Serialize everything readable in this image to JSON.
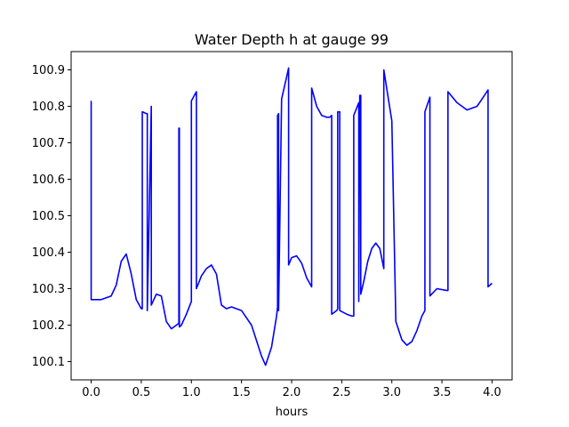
{
  "chart_data": {
    "type": "line",
    "title": "Water Depth h at gauge 99",
    "xlabel": "hours",
    "ylabel": "",
    "xlim": [
      -0.2,
      4.2
    ],
    "ylim": [
      100.05,
      100.95
    ],
    "xticks": [
      0.0,
      0.5,
      1.0,
      1.5,
      2.0,
      2.5,
      3.0,
      3.5,
      4.0
    ],
    "xtick_labels": [
      "0.0",
      "0.5",
      "1.0",
      "1.5",
      "2.0",
      "2.5",
      "3.0",
      "3.5",
      "4.0"
    ],
    "yticks": [
      100.1,
      100.2,
      100.3,
      100.4,
      100.5,
      100.6,
      100.7,
      100.8,
      100.9
    ],
    "ytick_labels": [
      "100.1",
      "100.2",
      "100.3",
      "100.4",
      "100.5",
      "100.6",
      "100.7",
      "100.8",
      "100.9"
    ],
    "grid": false,
    "series": [
      {
        "color": "#0000ff",
        "x": [
          0.0,
          0.0,
          0.1,
          0.2,
          0.25,
          0.3,
          0.35,
          0.4,
          0.45,
          0.5,
          0.51,
          0.51,
          0.55,
          0.56,
          0.56,
          0.6,
          0.6,
          0.65,
          0.7,
          0.75,
          0.8,
          0.85,
          0.875,
          0.875,
          0.88,
          0.88,
          0.9,
          0.95,
          1.0,
          1.0,
          1.05,
          1.05,
          1.1,
          1.15,
          1.2,
          1.25,
          1.3,
          1.35,
          1.4,
          1.5,
          1.6,
          1.7,
          1.74,
          1.8,
          1.85,
          1.86,
          1.86,
          1.87,
          1.87,
          1.9,
          1.95,
          1.97,
          1.97,
          2.0,
          2.05,
          2.1,
          2.15,
          2.2,
          2.2,
          2.25,
          2.3,
          2.35,
          2.38,
          2.4,
          2.4,
          2.45,
          2.46,
          2.46,
          2.48,
          2.48,
          2.55,
          2.6,
          2.62,
          2.62,
          2.67,
          2.67,
          2.68,
          2.69,
          2.69,
          2.72,
          2.76,
          2.8,
          2.84,
          2.88,
          2.92,
          2.92,
          2.96,
          3.0,
          3.04,
          3.04,
          3.1,
          3.15,
          3.2,
          3.25,
          3.3,
          3.33,
          3.33,
          3.38,
          3.38,
          3.45,
          3.55,
          3.56,
          3.56,
          3.65,
          3.75,
          3.85,
          3.9,
          3.96,
          3.96,
          4.0
        ],
        "y": [
          100.815,
          100.27,
          100.27,
          100.28,
          100.31,
          100.375,
          100.395,
          100.34,
          100.27,
          100.245,
          100.245,
          100.785,
          100.78,
          100.78,
          100.24,
          100.8,
          100.255,
          100.285,
          100.28,
          100.21,
          100.19,
          100.2,
          100.205,
          100.74,
          100.74,
          100.195,
          100.2,
          100.23,
          100.265,
          100.815,
          100.84,
          100.3,
          100.335,
          100.355,
          100.365,
          100.34,
          100.255,
          100.245,
          100.25,
          100.24,
          100.2,
          100.115,
          100.09,
          100.14,
          100.225,
          100.25,
          100.775,
          100.78,
          100.24,
          100.82,
          100.88,
          100.905,
          100.365,
          100.385,
          100.39,
          100.37,
          100.33,
          100.305,
          100.85,
          100.8,
          100.775,
          100.77,
          100.77,
          100.775,
          100.23,
          100.24,
          100.245,
          100.785,
          100.785,
          100.24,
          100.23,
          100.225,
          100.225,
          100.775,
          100.81,
          100.265,
          100.83,
          100.83,
          100.285,
          100.32,
          100.375,
          100.41,
          100.425,
          100.41,
          100.355,
          100.9,
          100.83,
          100.76,
          100.21,
          100.21,
          100.16,
          100.145,
          100.155,
          100.185,
          100.225,
          100.24,
          100.785,
          100.825,
          100.28,
          100.3,
          100.295,
          100.295,
          100.84,
          100.81,
          100.79,
          100.8,
          100.82,
          100.845,
          100.305,
          100.315
        ]
      }
    ]
  }
}
